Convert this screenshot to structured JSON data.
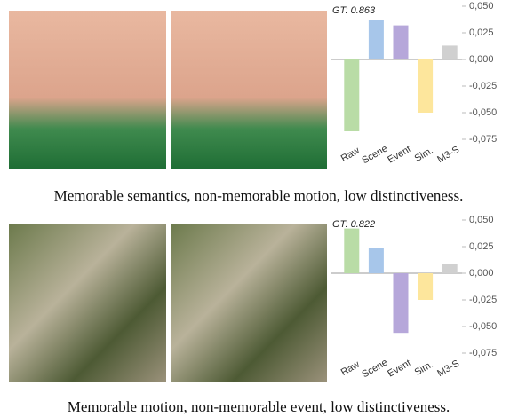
{
  "chart_data": [
    {
      "type": "bar",
      "annotation": "GT: 0.863",
      "categories": [
        "Raw",
        "Scene",
        "Event",
        "Sim.",
        "M3-S"
      ],
      "values": [
        -0.0675,
        0.0375,
        0.032,
        -0.05,
        0.013
      ],
      "colors": [
        "#b9dca6",
        "#a7c6ea",
        "#b6a7da",
        "#fde69c",
        "#d0d0d0"
      ],
      "ylim": [
        -0.08,
        0.055
      ],
      "yticks": [
        {
          "value": 0.05,
          "label": "0,050"
        },
        {
          "value": 0.025,
          "label": "0,025"
        },
        {
          "value": 0,
          "label": "0,000"
        },
        {
          "value": -0.025,
          "label": "-0,025"
        },
        {
          "value": -0.05,
          "label": "-0,050"
        },
        {
          "value": -0.075,
          "label": "-0,075"
        }
      ],
      "grid": false,
      "caption": "Memorable semantics, non-memorable motion, low distinctiveness."
    },
    {
      "type": "bar",
      "annotation": "GT: 0.822",
      "categories": [
        "Raw",
        "Scene",
        "Event",
        "Sim.",
        "M3-S"
      ],
      "values": [
        0.042,
        0.024,
        -0.056,
        -0.025,
        0.009
      ],
      "colors": [
        "#b9dca6",
        "#a7c6ea",
        "#b6a7da",
        "#fde69c",
        "#d0d0d0"
      ],
      "ylim": [
        -0.08,
        0.055
      ],
      "yticks": [
        {
          "value": 0.05,
          "label": "0,050"
        },
        {
          "value": 0.025,
          "label": "0,025"
        },
        {
          "value": 0,
          "label": "0,000"
        },
        {
          "value": -0.025,
          "label": "-0,025"
        },
        {
          "value": -0.05,
          "label": "-0,050"
        },
        {
          "value": -0.075,
          "label": "-0,075"
        }
      ],
      "grid": false,
      "caption": "Memorable motion, non-memorable event, low distinctiveness."
    }
  ]
}
